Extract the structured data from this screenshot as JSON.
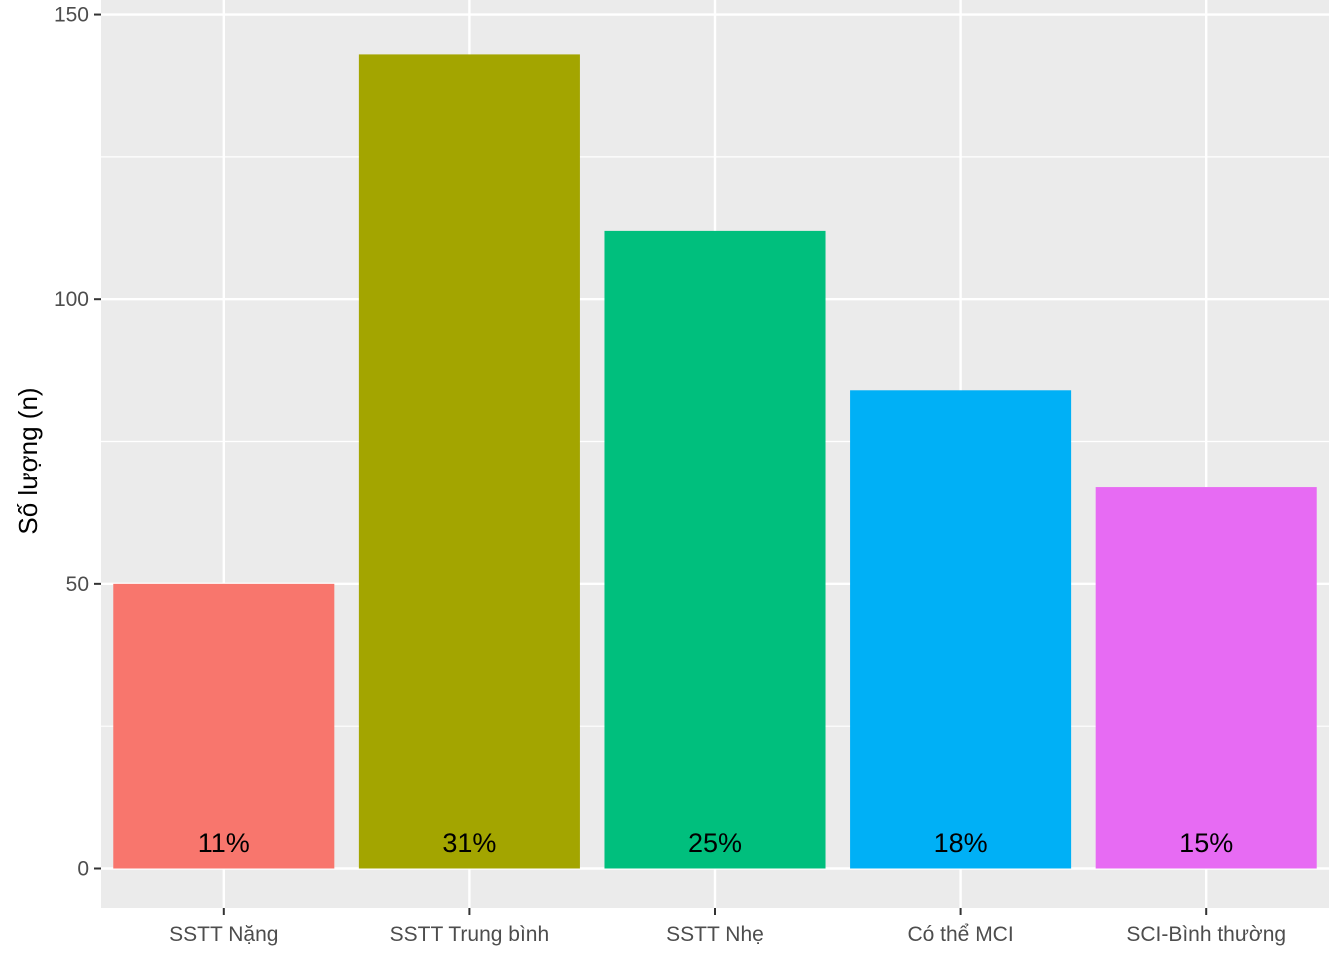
{
  "chart_data": {
    "type": "bar",
    "title": "",
    "xlabel": "",
    "ylabel": "Số lượng (n)",
    "categories": [
      "SSTT Nặng",
      "SSTT Trung bình",
      "SSTT Nhẹ",
      "Có thể MCI",
      "SCI-Bình thường"
    ],
    "values": [
      50,
      143,
      112,
      84,
      67
    ],
    "bar_labels": [
      "11%",
      "31%",
      "25%",
      "18%",
      "15%"
    ],
    "colors": [
      "#F8766D",
      "#A3A500",
      "#00BF7D",
      "#00B0F6",
      "#E76BF3"
    ],
    "yticks": [
      "0",
      "50",
      "100",
      "150"
    ],
    "ylim": [
      -7,
      150
    ],
    "grid": true,
    "legend": "none",
    "panel_background": "#EBEBEB"
  }
}
